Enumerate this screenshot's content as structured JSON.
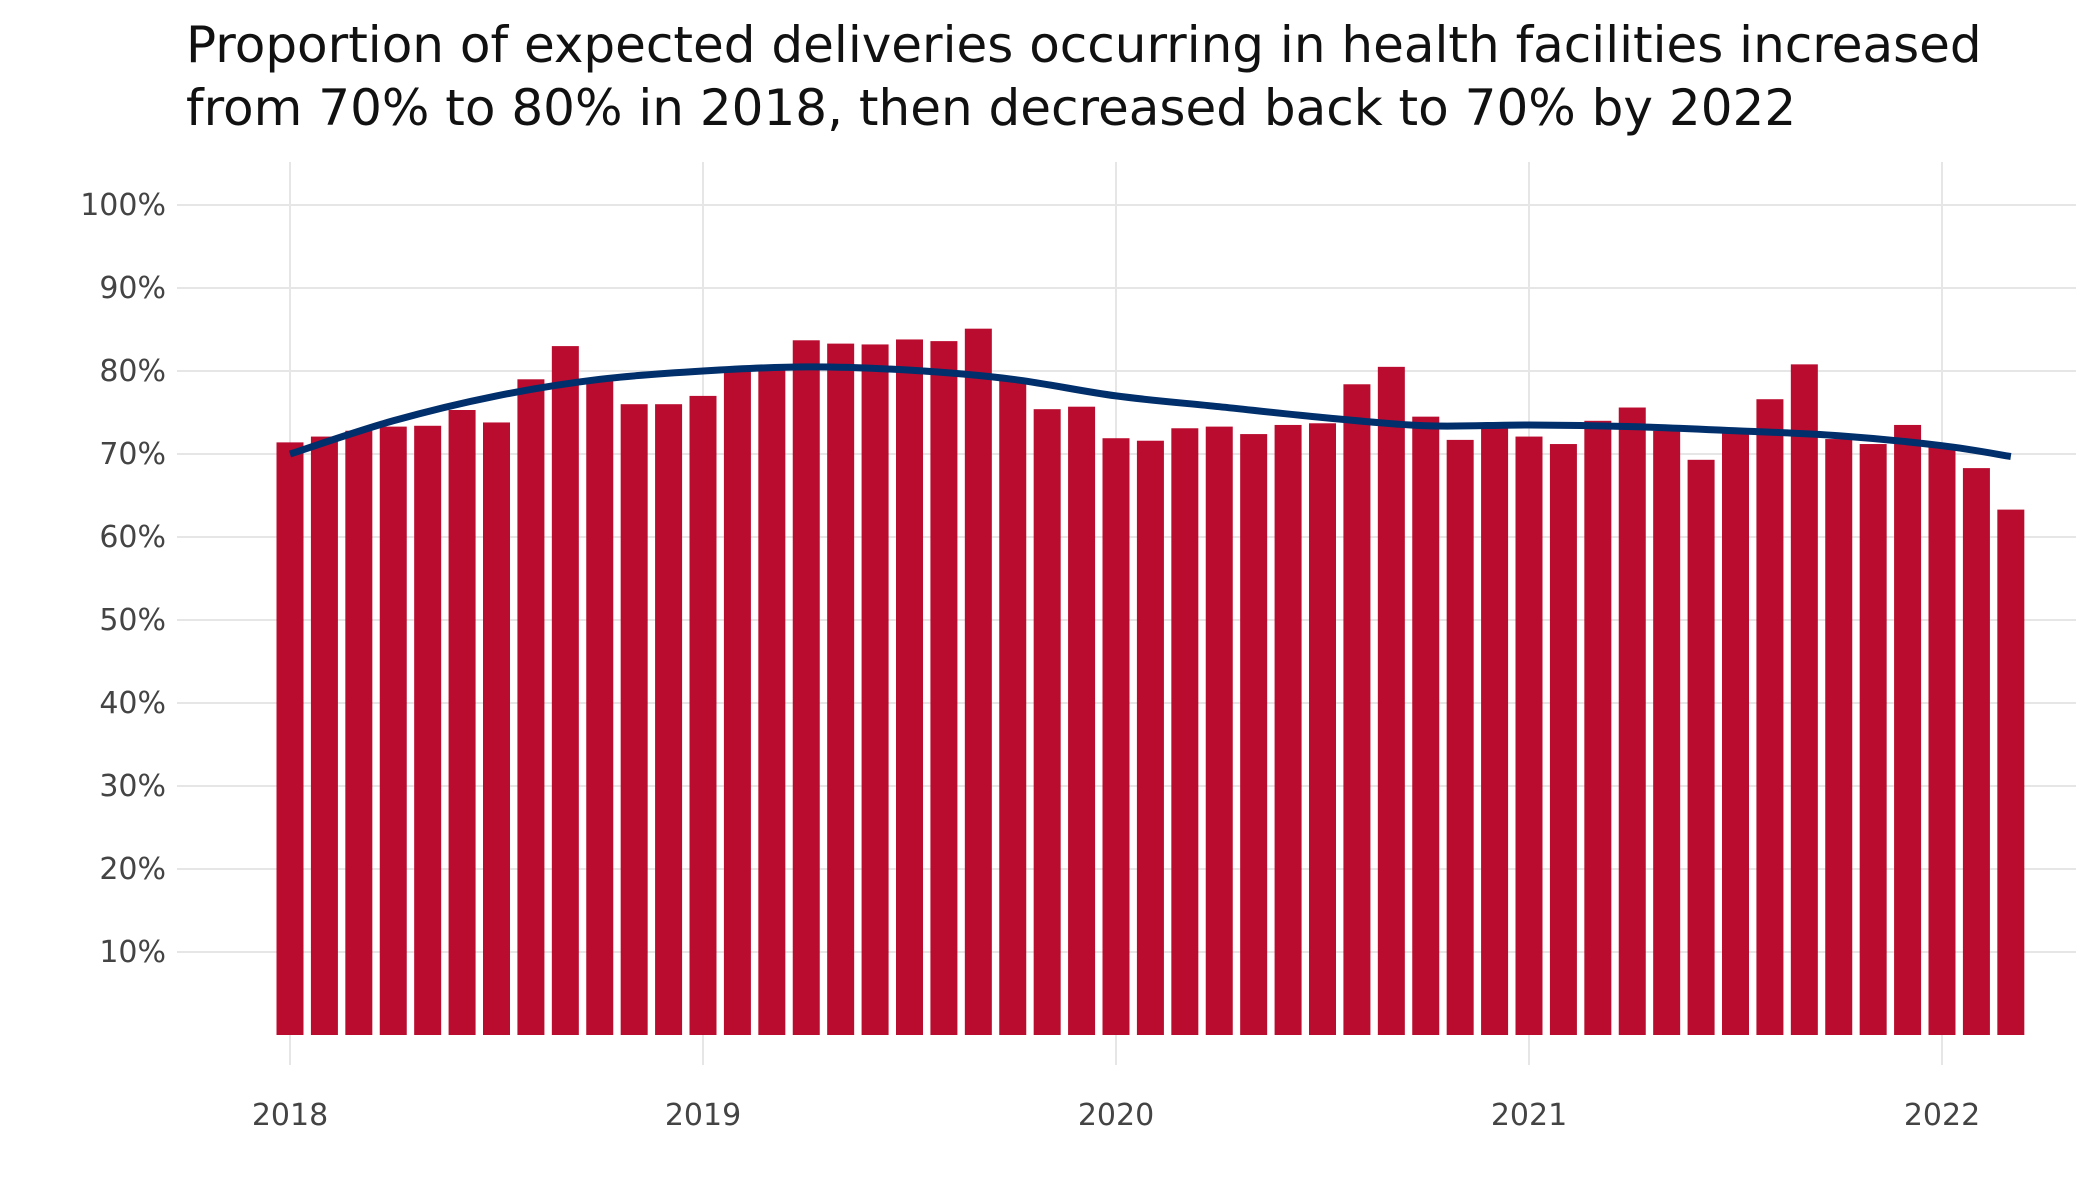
{
  "chart_data": {
    "type": "bar",
    "title": "Proportion of expected deliveries occurring in health facilities increased from 70% to 80% in 2018, then decreased back to 70% by 2022",
    "title_lines": [
      "Proportion of expected deliveries occurring in health facilities increased",
      "from 70% to 80% in 2018, then decreased back to 70% by 2022"
    ],
    "xlabel": "",
    "ylabel": "",
    "x_ticks": [
      "2018",
      "2019",
      "2020",
      "2021",
      "2022"
    ],
    "y_ticks": [
      "10%",
      "20%",
      "30%",
      "40%",
      "50%",
      "60%",
      "70%",
      "80%",
      "90%",
      "100%"
    ],
    "ylim": [
      0,
      1.0
    ],
    "grid": true,
    "bar_color": "#BA0C2F",
    "trend_color": "#002F6C",
    "series": [
      {
        "type": "bar",
        "x": [
          "2018-01",
          "2018-02",
          "2018-03",
          "2018-04",
          "2018-05",
          "2018-06",
          "2018-07",
          "2018-08",
          "2018-09",
          "2018-10",
          "2018-11",
          "2018-12",
          "2019-01",
          "2019-02",
          "2019-03",
          "2019-04",
          "2019-05",
          "2019-06",
          "2019-07",
          "2019-08",
          "2019-09",
          "2019-10",
          "2019-11",
          "2019-12",
          "2020-01",
          "2020-02",
          "2020-03",
          "2020-04",
          "2020-05",
          "2020-06",
          "2020-07",
          "2020-08",
          "2020-09",
          "2020-10",
          "2020-11",
          "2020-12",
          "2021-01",
          "2021-02",
          "2021-03",
          "2021-04",
          "2021-05",
          "2021-06",
          "2021-07",
          "2021-08",
          "2021-09",
          "2021-10",
          "2021-11",
          "2021-12",
          "2022-01",
          "2022-02",
          "2022-03"
        ],
        "values": [
          0.714,
          0.721,
          0.728,
          0.733,
          0.734,
          0.753,
          0.738,
          0.79,
          0.83,
          0.788,
          0.76,
          0.76,
          0.77,
          0.8,
          0.802,
          0.837,
          0.833,
          0.832,
          0.838,
          0.836,
          0.851,
          0.788,
          0.754,
          0.757,
          0.719,
          0.716,
          0.731,
          0.733,
          0.724,
          0.735,
          0.737,
          0.784,
          0.805,
          0.745,
          0.717,
          0.735,
          0.721,
          0.712,
          0.74,
          0.756,
          0.728,
          0.693,
          0.726,
          0.766,
          0.808,
          0.718,
          0.712,
          0.735,
          0.708,
          0.683,
          0.633
        ]
      },
      {
        "type": "line",
        "x": [
          "2018-01",
          "2018-04",
          "2018-07",
          "2018-10",
          "2019-01",
          "2019-04",
          "2019-07",
          "2019-10",
          "2020-01",
          "2020-04",
          "2020-07",
          "2020-10",
          "2021-01",
          "2021-04",
          "2021-07",
          "2021-10",
          "2022-01",
          "2022-03"
        ],
        "values": [
          0.7,
          0.74,
          0.77,
          0.79,
          0.8,
          0.805,
          0.801,
          0.79,
          0.77,
          0.757,
          0.744,
          0.734,
          0.735,
          0.733,
          0.728,
          0.722,
          0.71,
          0.697
        ]
      }
    ]
  }
}
